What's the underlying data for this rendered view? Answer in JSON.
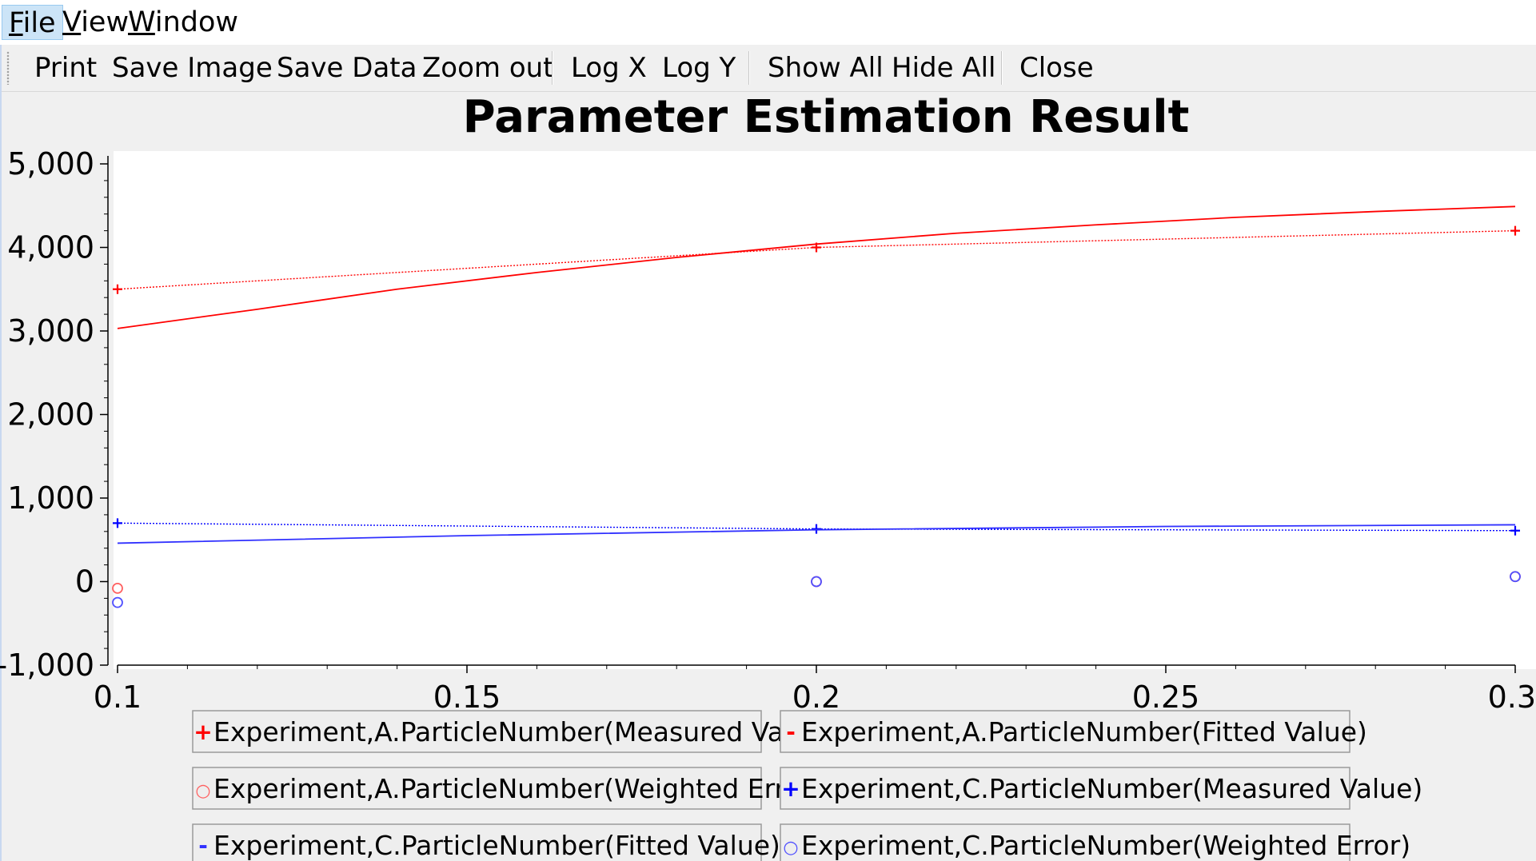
{
  "menu": {
    "items": [
      {
        "mnemonic": "F",
        "rest": "ile"
      },
      {
        "mnemonic": "V",
        "rest": "iew"
      },
      {
        "mnemonic": "W",
        "rest": "indow"
      }
    ]
  },
  "toolbar": {
    "print": "Print",
    "save_image": "Save Image",
    "save_data": "Save Data",
    "zoom_out": "Zoom out",
    "log_x": "Log X",
    "log_y": "Log Y",
    "show_all": "Show All",
    "hide_all": "Hide All",
    "close": "Close"
  },
  "chart_data": {
    "type": "line",
    "title": "Parameter Estimation Result",
    "xlabel": "",
    "ylabel": "",
    "xlim": [
      0.1,
      0.3
    ],
    "ylim": [
      -1000,
      5000
    ],
    "x_ticks": [
      {
        "value": 0.1,
        "label": "0.1"
      },
      {
        "value": 0.15,
        "label": "0.15"
      },
      {
        "value": 0.2,
        "label": "0.2"
      },
      {
        "value": 0.25,
        "label": "0.25"
      },
      {
        "value": 0.3,
        "label": "0.3"
      }
    ],
    "y_ticks": [
      {
        "value": 5000,
        "label": "5,000"
      },
      {
        "value": 4000,
        "label": "4,000"
      },
      {
        "value": 3000,
        "label": "3,000"
      },
      {
        "value": 2000,
        "label": "2,000"
      },
      {
        "value": 1000,
        "label": "1,000"
      },
      {
        "value": 0,
        "label": "0"
      },
      {
        "value": -1000,
        "label": "-1,000"
      }
    ],
    "grid": false,
    "legend_position": "bottom",
    "series": [
      {
        "name": "Experiment,A.ParticleNumber(Measured Value)",
        "color": "#ff0000",
        "marker": "plus",
        "line": "dotted",
        "symbol": "+",
        "points": [
          [
            0.1,
            3500
          ],
          [
            0.2,
            4000
          ],
          [
            0.3,
            4200
          ]
        ]
      },
      {
        "name": "Experiment,A.ParticleNumber(Fitted Value)",
        "color": "#ff0000",
        "marker": "none",
        "line": "solid",
        "symbol": "-",
        "points": [
          [
            0.1,
            3030
          ],
          [
            0.12,
            3260
          ],
          [
            0.14,
            3500
          ],
          [
            0.16,
            3700
          ],
          [
            0.18,
            3880
          ],
          [
            0.2,
            4040
          ],
          [
            0.22,
            4170
          ],
          [
            0.24,
            4270
          ],
          [
            0.26,
            4360
          ],
          [
            0.28,
            4430
          ],
          [
            0.3,
            4490
          ]
        ]
      },
      {
        "name": "Experiment,A.ParticleNumber(Weighted Error)",
        "color": "#ff6060",
        "marker": "circle",
        "line": "none",
        "symbol": "○",
        "points": [
          [
            0.1,
            -80
          ],
          [
            0.2,
            0
          ],
          [
            0.3,
            60
          ]
        ]
      },
      {
        "name": "Experiment,C.ParticleNumber(Measured Value)",
        "color": "#0000ff",
        "marker": "plus",
        "line": "dotted",
        "symbol": "+",
        "points": [
          [
            0.1,
            700
          ],
          [
            0.2,
            630
          ],
          [
            0.3,
            610
          ]
        ]
      },
      {
        "name": "Experiment,C.ParticleNumber(Fitted Value)",
        "color": "#3030ff",
        "marker": "none",
        "line": "solid",
        "symbol": "-",
        "points": [
          [
            0.1,
            460
          ],
          [
            0.15,
            550
          ],
          [
            0.2,
            620
          ],
          [
            0.25,
            660
          ],
          [
            0.3,
            680
          ]
        ]
      },
      {
        "name": "Experiment,C.ParticleNumber(Weighted Error)",
        "color": "#5050ff",
        "marker": "circle",
        "line": "none",
        "symbol": "○",
        "points": [
          [
            0.1,
            -250
          ],
          [
            0.2,
            0
          ],
          [
            0.3,
            60
          ]
        ]
      }
    ]
  }
}
